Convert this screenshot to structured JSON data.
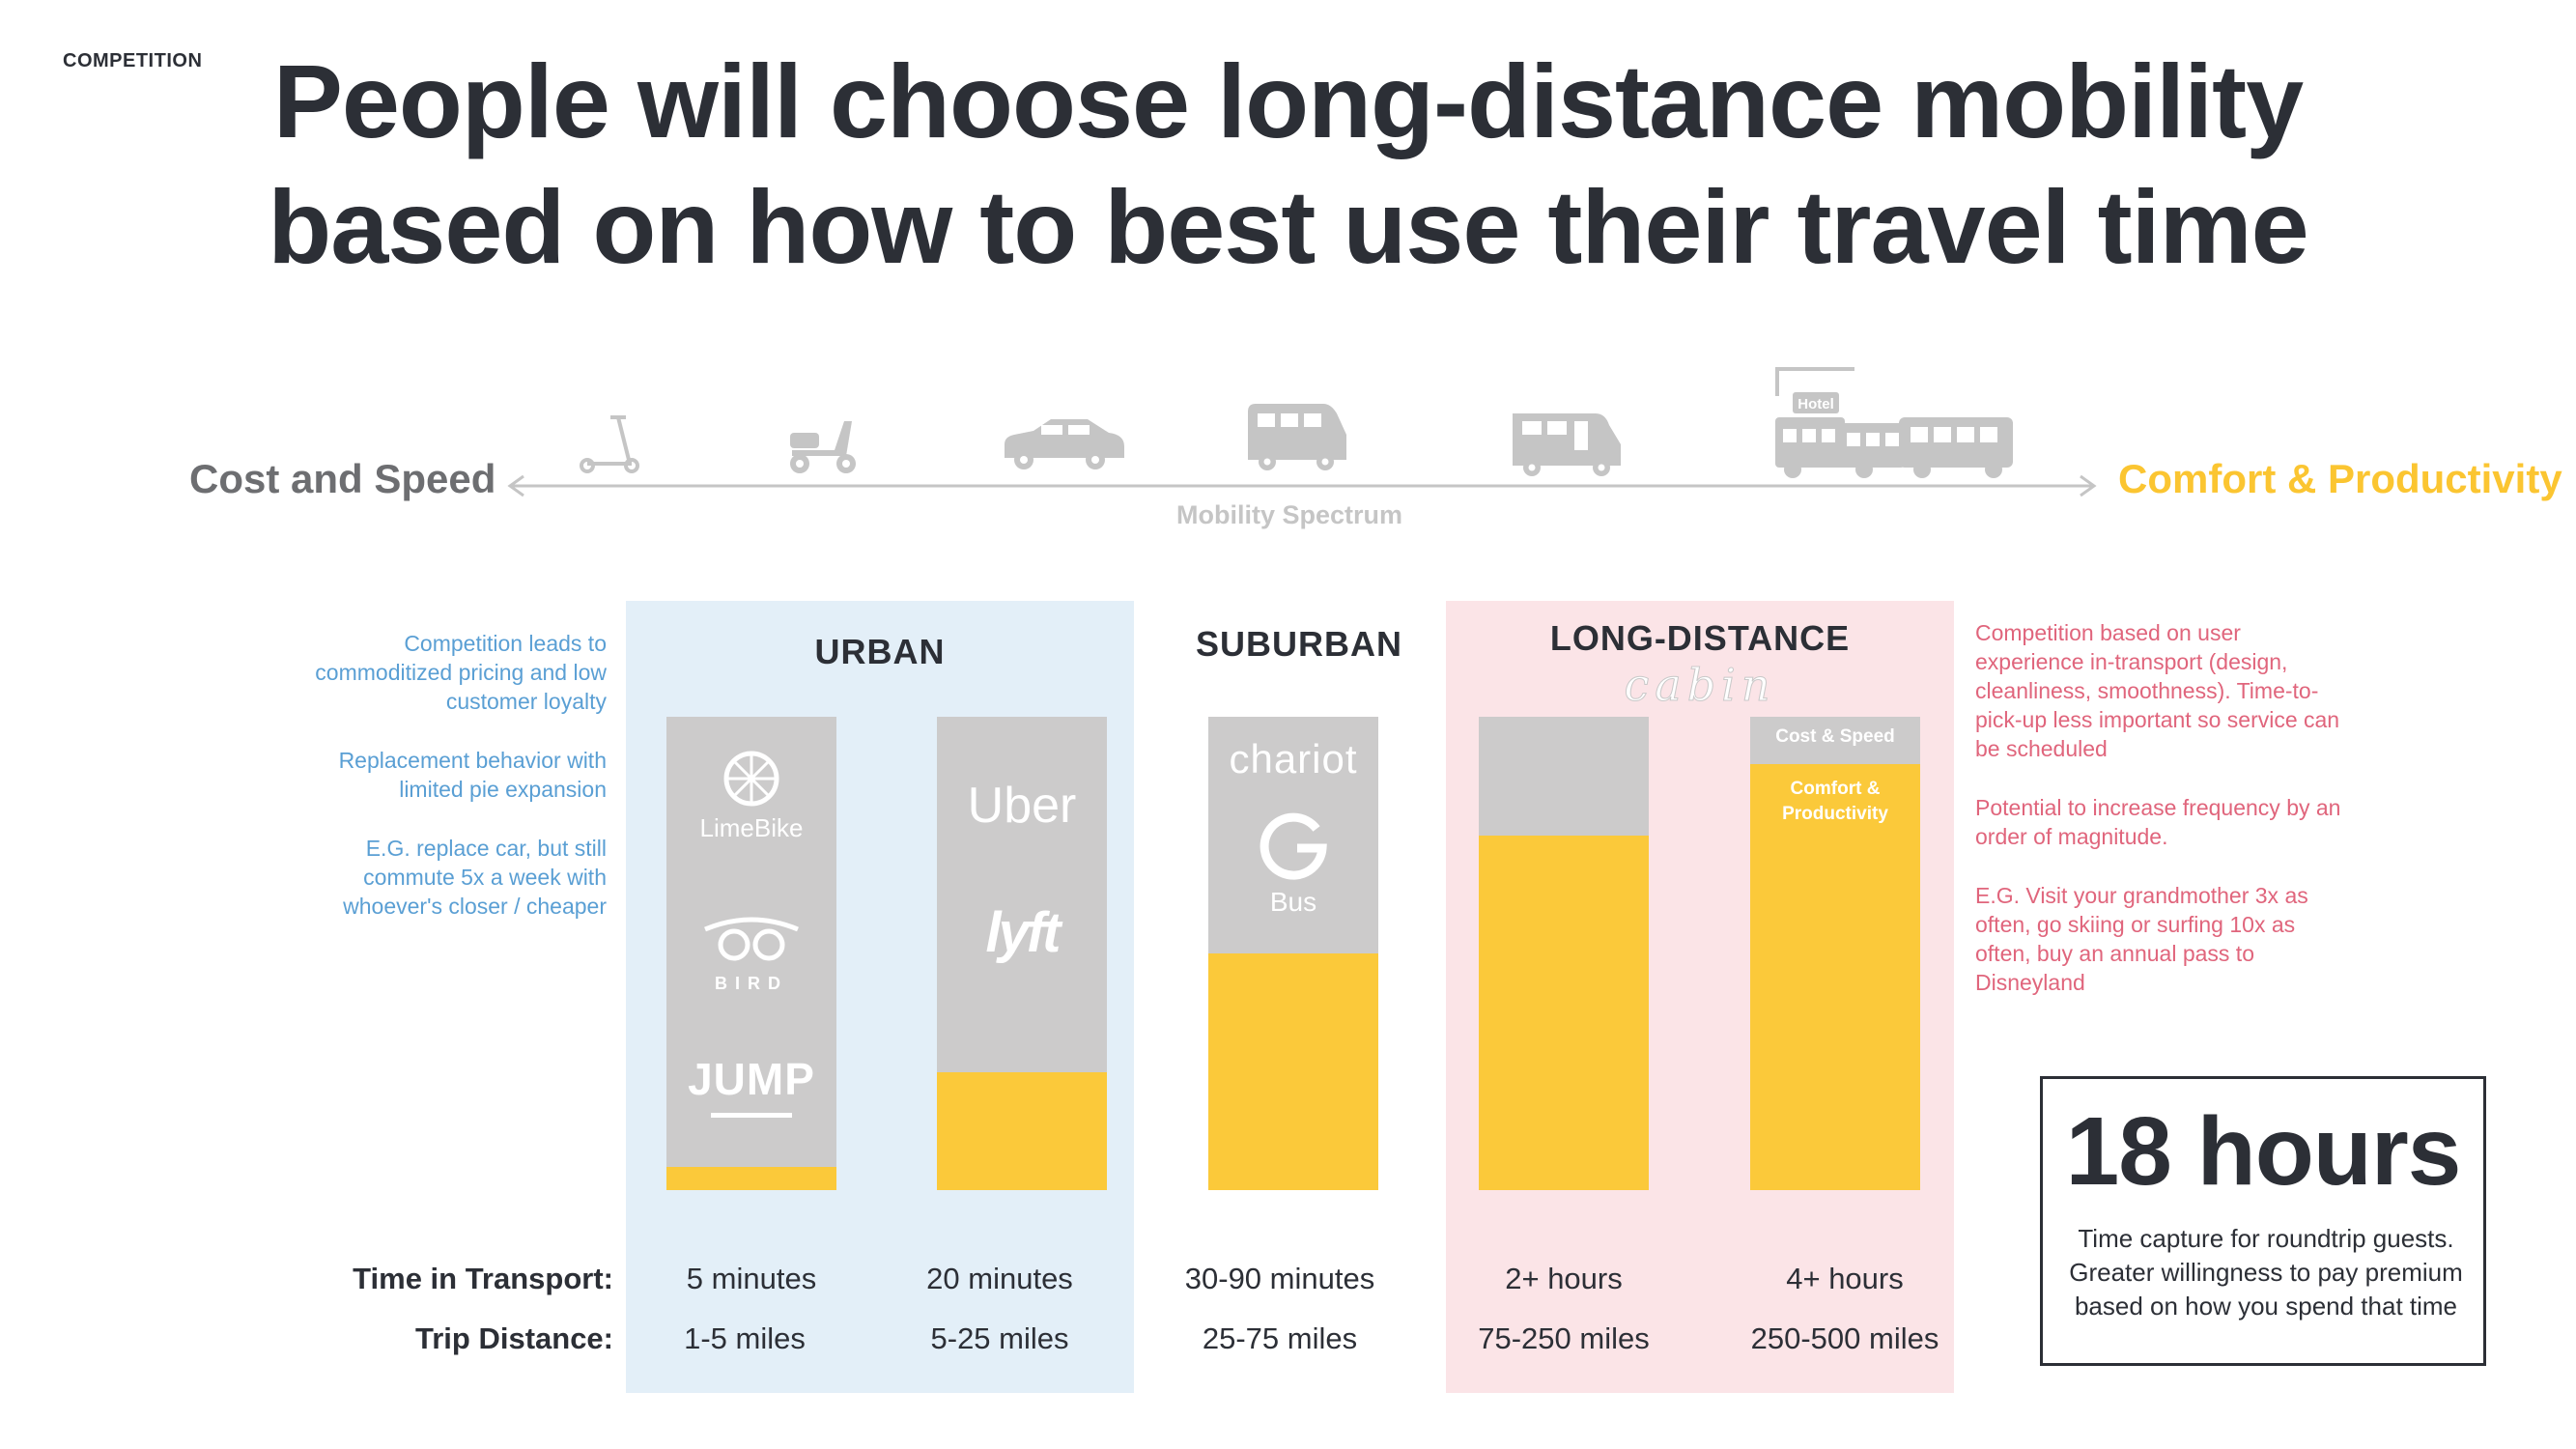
{
  "header": {
    "section": "COMPETITION",
    "title_line1": "People will choose long-distance mobility",
    "title_line2": "based on how to best use their travel time"
  },
  "spectrum": {
    "left_label": "Cost and Speed",
    "right_label": "Comfort & Productivity",
    "axis_label": "Mobility Spectrum",
    "hotel_sign": "Hotel",
    "icons": [
      "scooter-icon",
      "moped-icon",
      "car-icon",
      "van-icon",
      "rv-icon",
      "hotel-bus-icon"
    ]
  },
  "columns": {
    "urban": "URBAN",
    "suburban": "SUBURBAN",
    "long_distance": "LONG-DISTANCE",
    "cabin_brand": "cabin"
  },
  "notes_left": [
    "Competition leads to commoditized pricing and low customer loyalty",
    "Replacement behavior with limited pie expansion",
    "E.G. replace car, but still commute 5x a week with whoever's closer / cheaper"
  ],
  "notes_right": [
    "Competition based on user experience in-transport (design, cleanliness, smoothness). Time-to-pick-up less important so service can be scheduled",
    "Potential to increase frequency by an order of magnitude.",
    "E.G. Visit your grandmother 3x as often, go skiing or surfing 10x as often, buy an annual pass to Disneyland"
  ],
  "brands": {
    "limebike": "LimeBike",
    "bird": "BIRD",
    "jump": "JUMP",
    "uber": "Uber",
    "lyft": "lyft",
    "chariot": "chariot",
    "google_bus": "Bus"
  },
  "bar_labels": {
    "cost_speed": "Cost & Speed",
    "comfort": "Comfort & Productivity"
  },
  "rows": {
    "time_label": "Time in Transport:",
    "distance_label": "Trip Distance:"
  },
  "chart_data": {
    "type": "bar",
    "colors": {
      "comfort": "#fbc93a",
      "cost_speed": "#cccbcb"
    },
    "categories": [
      "5 minutes",
      "20 minutes",
      "30-90 minutes",
      "2+ hours",
      "4+ hours"
    ],
    "distances": [
      "1-5 miles",
      "5-25 miles",
      "25-75 miles",
      "75-250 miles",
      "250-500 miles"
    ],
    "comfort_share": [
      0.05,
      0.25,
      0.5,
      0.75,
      0.9
    ]
  },
  "callout": {
    "big": "18 hours",
    "desc": "Time capture for roundtrip guests. Greater willingness to pay premium based on how you spend that time"
  }
}
